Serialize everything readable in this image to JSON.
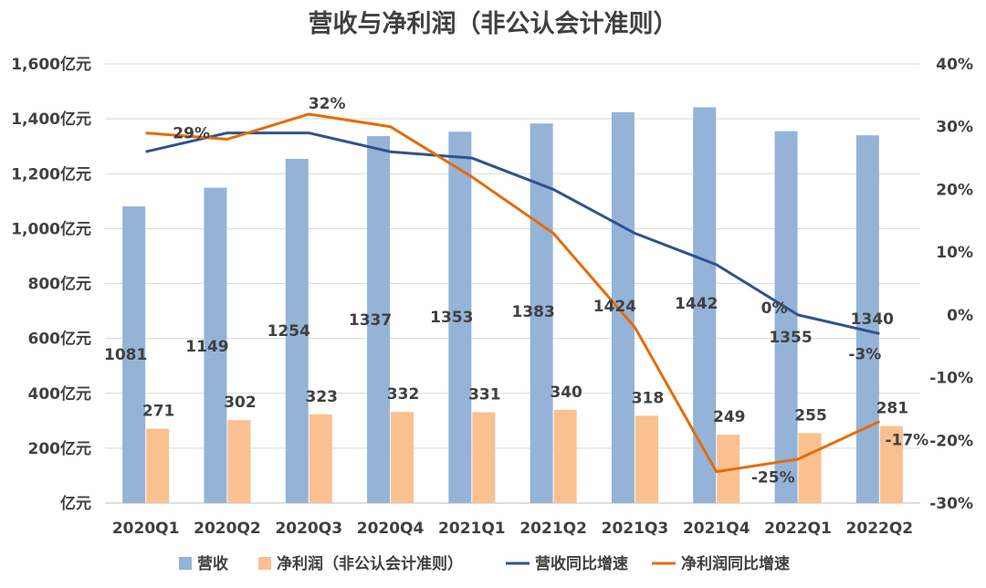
{
  "chart_data": {
    "type": "bar",
    "title": "营收与净利润（非公认会计准则）",
    "categories": [
      "2020Q1",
      "2020Q2",
      "2020Q3",
      "2020Q4",
      "2021Q1",
      "2021Q2",
      "2021Q3",
      "2021Q4",
      "2022Q1",
      "2022Q2"
    ],
    "series": [
      {
        "name": "营收",
        "kind": "bar",
        "axis": "left",
        "color": "#95b3d7",
        "values": [
          1081,
          1149,
          1254,
          1337,
          1353,
          1383,
          1424,
          1442,
          1355,
          1340
        ],
        "labels": [
          "1081",
          "1149",
          "1254",
          "1337",
          "1353",
          "1383",
          "1424",
          "1442",
          "1355",
          "1340"
        ]
      },
      {
        "name": "净利润（非公认会计准则）",
        "kind": "bar",
        "axis": "left",
        "color": "#fac090",
        "values": [
          271,
          302,
          323,
          332,
          331,
          340,
          318,
          249,
          255,
          281
        ],
        "labels": [
          "271",
          "302",
          "323",
          "332",
          "331",
          "340",
          "318",
          "249",
          "255",
          "281"
        ]
      },
      {
        "name": "营收同比增速",
        "kind": "line",
        "axis": "right",
        "color": "#2f528f",
        "values": [
          26,
          29,
          29,
          26,
          25,
          20,
          13,
          8,
          0,
          -3
        ],
        "labels": [
          "",
          "",
          "",
          "",
          "",
          "",
          "",
          "",
          "0%",
          "-3%"
        ]
      },
      {
        "name": "净利润同比增速",
        "kind": "line",
        "axis": "right",
        "color": "#e46c0a",
        "values": [
          29,
          28,
          32,
          30,
          22,
          13,
          -2,
          -25,
          -23,
          -17
        ],
        "labels": [
          "29%",
          "",
          "32%",
          "",
          "",
          "",
          "",
          "-25%",
          "",
          "-17%"
        ]
      }
    ],
    "y_left": {
      "min": 0,
      "max": 1600,
      "ticks": [
        0,
        200,
        400,
        600,
        800,
        1000,
        1200,
        1400,
        1600
      ],
      "tick_labels": [
        "亿元",
        "200亿元",
        "400亿元",
        "600亿元",
        "800亿元",
        "1,000亿元",
        "1,200亿元",
        "1,400亿元",
        "1,600亿元"
      ]
    },
    "y_right": {
      "min": -30,
      "max": 40,
      "ticks": [
        -30,
        -20,
        -10,
        0,
        10,
        20,
        30,
        40
      ],
      "tick_labels": [
        "-30%",
        "-20%",
        "-10%",
        "0%",
        "10%",
        "20%",
        "30%",
        "40%"
      ]
    },
    "grid": true,
    "legend_position": "bottom"
  }
}
